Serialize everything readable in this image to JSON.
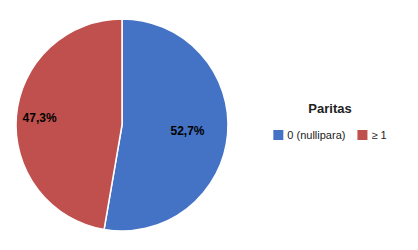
{
  "chart_data": {
    "type": "pie",
    "categories": [
      "0 (nullipara)",
      "≥ 1"
    ],
    "values": [
      52.7,
      47.3
    ],
    "value_labels": [
      "52,7%",
      "47,3%"
    ],
    "colors": [
      "#4472C4",
      "#C0504D"
    ],
    "legend_title": "Paritas",
    "legend": "right",
    "data_labels": true
  }
}
